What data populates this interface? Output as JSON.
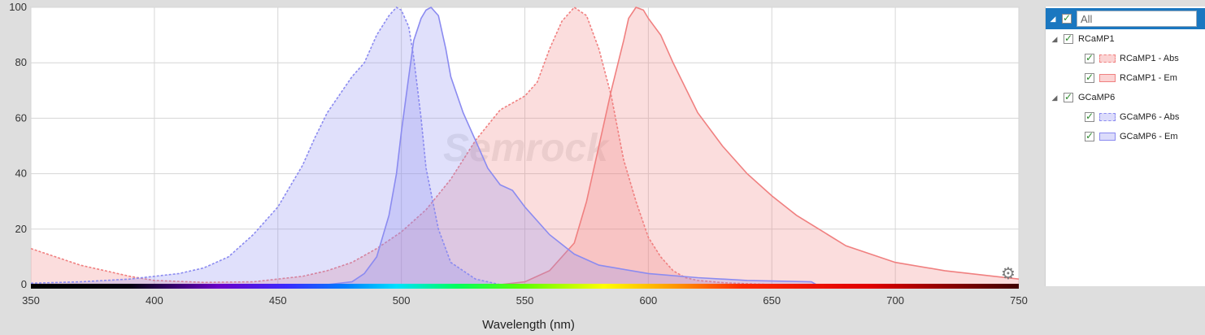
{
  "chart_data": {
    "type": "area",
    "xlabel": "Wavelength (nm)",
    "xlim": [
      350,
      750
    ],
    "ylim": [
      0,
      100
    ],
    "x_ticks": [
      350,
      400,
      450,
      500,
      550,
      600,
      650,
      700,
      750
    ],
    "y_ticks": [
      0,
      20,
      40,
      60,
      80,
      100
    ],
    "grid": true,
    "legend_position": "right",
    "series": [
      {
        "name": "RCaMP1 - Abs",
        "color": "#f08080",
        "dashed": true,
        "x": [
          350,
          360,
          370,
          380,
          390,
          400,
          420,
          440,
          460,
          470,
          480,
          490,
          500,
          510,
          520,
          530,
          540,
          550,
          555,
          560,
          565,
          570,
          575,
          580,
          585,
          590,
          595,
          600,
          605,
          610,
          615,
          620,
          630,
          640,
          650
        ],
        "y": [
          13,
          10,
          7,
          5,
          3,
          1.5,
          0.8,
          1,
          3,
          5,
          8,
          13,
          19,
          27,
          38,
          52,
          63,
          68,
          73,
          85,
          95,
          100,
          97,
          85,
          68,
          45,
          30,
          17,
          10,
          5,
          2.5,
          1.5,
          0.7,
          0.3,
          0
        ]
      },
      {
        "name": "RCaMP1 - Em",
        "color": "#f08080",
        "dashed": false,
        "x": [
          540,
          550,
          560,
          570,
          575,
          580,
          585,
          590,
          592,
          595,
          598,
          600,
          605,
          610,
          620,
          630,
          640,
          650,
          660,
          680,
          700,
          720,
          740,
          750
        ],
        "y": [
          0,
          1,
          5,
          15,
          30,
          50,
          70,
          88,
          96,
          100,
          99,
          96,
          90,
          80,
          62,
          50,
          40,
          32,
          25,
          14,
          8,
          5,
          3,
          2
        ]
      },
      {
        "name": "GCaMP6 - Abs",
        "color": "#8b8bf0",
        "dashed": true,
        "x": [
          350,
          370,
          390,
          400,
          410,
          420,
          430,
          440,
          450,
          460,
          465,
          470,
          480,
          485,
          490,
          495,
          498,
          500,
          503,
          505,
          508,
          510,
          515,
          520,
          530,
          540
        ],
        "y": [
          0.5,
          1,
          2,
          3,
          4,
          6,
          10,
          18,
          28,
          43,
          53,
          62,
          75,
          80,
          90,
          97,
          100,
          99,
          93,
          82,
          60,
          42,
          20,
          8,
          2,
          0
        ]
      },
      {
        "name": "GCaMP6 - Em",
        "color": "#8b8bf0",
        "dashed": false,
        "x": [
          470,
          480,
          485,
          490,
          495,
          498,
          500,
          503,
          505,
          508,
          510,
          512,
          515,
          518,
          520,
          525,
          530,
          535,
          540,
          545,
          550,
          560,
          570,
          580,
          600,
          620,
          640,
          666,
          668
        ],
        "y": [
          0,
          1,
          4,
          10,
          25,
          40,
          55,
          75,
          88,
          96,
          99,
          100,
          97,
          85,
          75,
          62,
          52,
          42,
          36,
          34,
          28,
          18,
          11,
          7,
          4,
          2.5,
          1.5,
          1,
          0
        ]
      }
    ]
  },
  "legend": {
    "all_label": "All",
    "groups": [
      {
        "label": "RCaMP1",
        "items": [
          {
            "label": "RCaMP1 - Abs"
          },
          {
            "label": "RCaMP1 - Em"
          }
        ]
      },
      {
        "label": "GCaMP6",
        "items": [
          {
            "label": "GCaMP6 - Abs"
          },
          {
            "label": "GCaMP6 - Em"
          }
        ]
      }
    ]
  },
  "watermark": "Semrock",
  "settings_icon": "gear-icon"
}
